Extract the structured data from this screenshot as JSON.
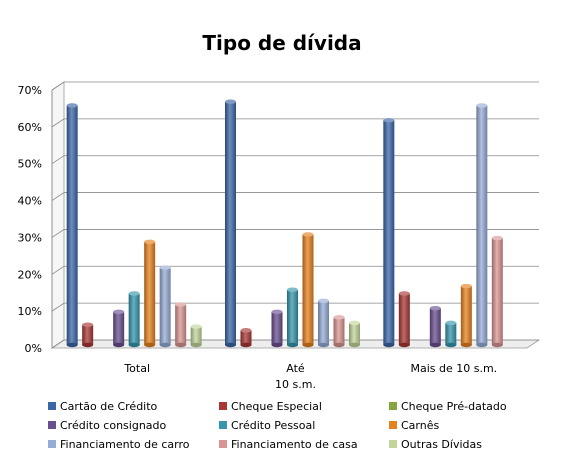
{
  "chart_data": {
    "type": "bar",
    "title": "Tipo de dívida",
    "xlabel": "",
    "ylabel": "",
    "ylim": [
      0,
      70
    ],
    "y_ticks": [
      "0%",
      "10%",
      "20%",
      "30%",
      "40%",
      "50%",
      "60%",
      "70%"
    ],
    "grid": true,
    "legend_position": "bottom",
    "categories": [
      [
        "Total"
      ],
      [
        "Até",
        "10 s.m."
      ],
      [
        "Mais de 10 s.m."
      ]
    ],
    "series": [
      {
        "name": "Cartão de Crédito",
        "color": "#3b67a8",
        "values": [
          65,
          66,
          61
        ]
      },
      {
        "name": "Cheque Especial",
        "color": "#a83835",
        "values": [
          5.5,
          4,
          14
        ]
      },
      {
        "name": "Cheque Pré-datado",
        "color": "#86a43f",
        "values": [
          0,
          0,
          0
        ]
      },
      {
        "name": "Crédito consignado",
        "color": "#6a4f8f",
        "values": [
          9,
          9,
          10
        ]
      },
      {
        "name": "Crédito Pessoal",
        "color": "#3596ac",
        "values": [
          14,
          15,
          6
        ]
      },
      {
        "name": "Carnês",
        "color": "#e7811f",
        "values": [
          28,
          30,
          16
        ]
      },
      {
        "name": "Financiamento de carro",
        "color": "#96acd6",
        "values": [
          21,
          12,
          65
        ]
      },
      {
        "name": "Financiamento de casa",
        "color": "#d99593",
        "values": [
          11,
          7.5,
          29
        ]
      },
      {
        "name": "Outras Dívidas",
        "color": "#c2d59b",
        "values": [
          5,
          6,
          0
        ]
      }
    ]
  }
}
